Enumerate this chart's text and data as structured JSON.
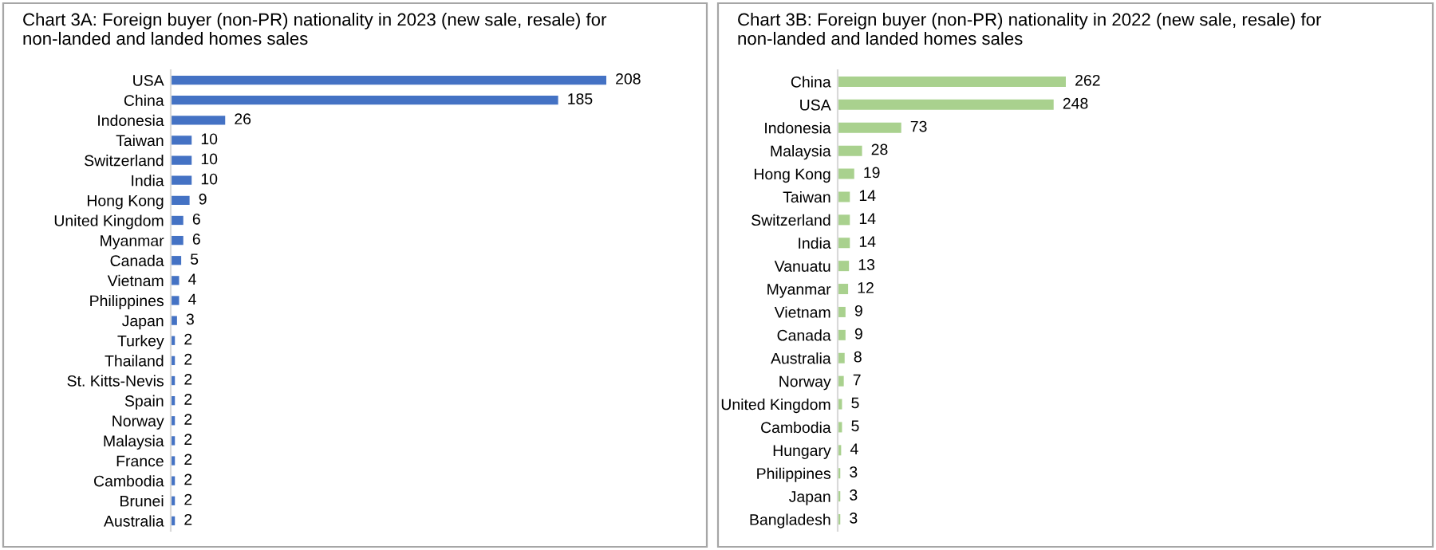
{
  "chart_data": [
    {
      "type": "bar",
      "orientation": "horizontal",
      "title": "Chart 3A: Foreign buyer (non-PR) nationality in 2023 (new sale, resale) for non-landed and landed homes sales",
      "categories": [
        "USA",
        "China",
        "Indonesia",
        "Taiwan",
        "Switzerland",
        "India",
        "Hong Kong",
        "United Kingdom",
        "Myanmar",
        "Canada",
        "Vietnam",
        "Philippines",
        "Japan",
        "Turkey",
        "Thailand",
        "St. Kitts-Nevis",
        "Spain",
        "Norway",
        "Malaysia",
        "France",
        "Cambodia",
        "Brunei",
        "Australia"
      ],
      "values": [
        208,
        185,
        26,
        10,
        10,
        10,
        9,
        6,
        6,
        5,
        4,
        4,
        3,
        2,
        2,
        2,
        2,
        2,
        2,
        2,
        2,
        2,
        2
      ],
      "color": "#4472c4",
      "data_labels": true,
      "grid": false,
      "legend": false
    },
    {
      "type": "bar",
      "orientation": "horizontal",
      "title": "Chart 3B: Foreign buyer (non-PR) nationality in 2022 (new sale, resale) for non-landed and landed homes sales",
      "categories": [
        "China",
        "USA",
        "Indonesia",
        "Malaysia",
        "Hong Kong",
        "Taiwan",
        "Switzerland",
        "India",
        "Vanuatu",
        "Myanmar",
        "Vietnam",
        "Canada",
        "Australia",
        "Norway",
        "United Kingdom",
        "Cambodia",
        "Hungary",
        "Philippines",
        "Japan",
        "Bangladesh"
      ],
      "values": [
        262,
        248,
        73,
        28,
        19,
        14,
        14,
        14,
        13,
        12,
        9,
        9,
        8,
        7,
        5,
        5,
        4,
        3,
        3,
        3
      ],
      "color": "#a9d18e",
      "data_labels": true,
      "grid": false,
      "legend": false
    }
  ]
}
